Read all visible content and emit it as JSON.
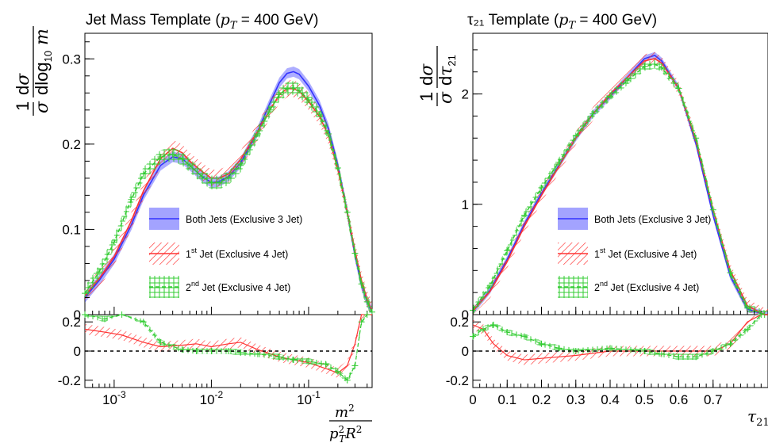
{
  "colors": {
    "both": "#3333ff",
    "first": "#ff3333",
    "second": "#33cc33"
  },
  "legend": {
    "both": "Both Jets (Exclusive 3 Jet)",
    "first_sup": "st",
    "first_rest": " Jet (Exclusive 4 Jet)",
    "second_sup": "nd",
    "second_rest": " Jet (Exclusive 4 Jet)",
    "num_first": "1",
    "num_second": "2"
  },
  "chart_data": [
    {
      "type": "line",
      "title": "Jet Mass Template (",
      "title_sym": "p",
      "title_sub": "T",
      "title_rest": " = 400 GeV)",
      "ylabel": "1/σ dσ/dlog10 m",
      "xlabel": "m²/(pT² R²)",
      "xscale": "log",
      "xlim": [
        0.0005,
        0.45
      ],
      "ylim": [
        0,
        0.33
      ],
      "ratio_ylim": [
        -0.25,
        0.25
      ],
      "xticks": [
        {
          "v": 0.001,
          "base": "10",
          "exp": "-3"
        },
        {
          "v": 0.01,
          "base": "10",
          "exp": "-2"
        },
        {
          "v": 0.1,
          "base": "10",
          "exp": "-1"
        }
      ],
      "yticks": [
        {
          "v": 0,
          "label": "0"
        },
        {
          "v": 0.1,
          "label": "0.1"
        },
        {
          "v": 0.2,
          "label": "0.2"
        },
        {
          "v": 0.3,
          "label": "0.3"
        }
      ],
      "ratio_yticks": [
        {
          "v": 0.2,
          "label": "0.2"
        },
        {
          "v": 0,
          "label": "0"
        },
        {
          "v": -0.2,
          "label": "-0.2"
        }
      ],
      "series": [
        {
          "key": "both",
          "band": 0.006,
          "x": [
            0.0005,
            0.0007,
            0.001,
            0.0015,
            0.002,
            0.003,
            0.004,
            0.005,
            0.006,
            0.008,
            0.01,
            0.012,
            0.015,
            0.02,
            0.03,
            0.04,
            0.05,
            0.06,
            0.07,
            0.08,
            0.1,
            0.13,
            0.16,
            0.2,
            0.25,
            0.3,
            0.35,
            0.4,
            0.45
          ],
          "y": [
            0.02,
            0.04,
            0.065,
            0.105,
            0.14,
            0.175,
            0.185,
            0.183,
            0.175,
            0.162,
            0.155,
            0.156,
            0.162,
            0.178,
            0.215,
            0.248,
            0.272,
            0.283,
            0.285,
            0.282,
            0.268,
            0.245,
            0.218,
            0.175,
            0.12,
            0.07,
            0.035,
            0.015,
            0.003
          ]
        },
        {
          "key": "first",
          "band": 0.01,
          "x": [
            0.0005,
            0.0007,
            0.001,
            0.0015,
            0.002,
            0.003,
            0.004,
            0.005,
            0.006,
            0.008,
            0.01,
            0.012,
            0.015,
            0.02,
            0.03,
            0.04,
            0.05,
            0.06,
            0.07,
            0.08,
            0.1,
            0.13,
            0.16,
            0.2,
            0.25,
            0.3,
            0.35,
            0.4,
            0.45
          ],
          "y": [
            0.022,
            0.042,
            0.068,
            0.11,
            0.145,
            0.183,
            0.195,
            0.19,
            0.18,
            0.168,
            0.16,
            0.16,
            0.165,
            0.182,
            0.215,
            0.24,
            0.258,
            0.265,
            0.265,
            0.262,
            0.25,
            0.232,
            0.21,
            0.17,
            0.12,
            0.075,
            0.04,
            0.018,
            0.004
          ]
        },
        {
          "key": "second",
          "band": 0.008,
          "x": [
            0.0005,
            0.0007,
            0.001,
            0.0015,
            0.002,
            0.003,
            0.004,
            0.005,
            0.006,
            0.008,
            0.01,
            0.012,
            0.015,
            0.02,
            0.03,
            0.04,
            0.05,
            0.06,
            0.07,
            0.08,
            0.1,
            0.13,
            0.16,
            0.2,
            0.25,
            0.3,
            0.35,
            0.4,
            0.45
          ],
          "y": [
            0.025,
            0.05,
            0.085,
            0.135,
            0.165,
            0.185,
            0.188,
            0.183,
            0.175,
            0.162,
            0.155,
            0.155,
            0.16,
            0.175,
            0.212,
            0.24,
            0.258,
            0.265,
            0.266,
            0.263,
            0.252,
            0.235,
            0.212,
            0.172,
            0.12,
            0.072,
            0.036,
            0.015,
            0.003
          ]
        }
      ],
      "ratio": [
        {
          "key": "first",
          "band": 0.035,
          "x": [
            0.0005,
            0.0008,
            0.0012,
            0.002,
            0.003,
            0.005,
            0.007,
            0.01,
            0.015,
            0.02,
            0.03,
            0.05,
            0.07,
            0.1,
            0.15,
            0.2,
            0.25,
            0.3,
            0.35,
            0.4,
            0.45
          ],
          "y": [
            0.15,
            0.13,
            0.11,
            0.06,
            0.03,
            0.04,
            0.05,
            0.03,
            0.05,
            0.06,
            0.01,
            -0.04,
            -0.06,
            -0.08,
            -0.12,
            -0.15,
            -0.1,
            0.05,
            0.25,
            0.28,
            0.28
          ]
        },
        {
          "key": "second",
          "band": 0.02,
          "x": [
            0.0005,
            0.0008,
            0.0012,
            0.002,
            0.003,
            0.005,
            0.007,
            0.01,
            0.015,
            0.02,
            0.03,
            0.05,
            0.07,
            0.1,
            0.15,
            0.2,
            0.25,
            0.3,
            0.35,
            0.4
          ],
          "y": [
            0.25,
            0.22,
            0.28,
            0.2,
            0.06,
            0.01,
            0.0,
            0.0,
            0.0,
            -0.01,
            -0.02,
            -0.04,
            -0.06,
            -0.07,
            -0.09,
            -0.14,
            -0.2,
            -0.1,
            0.2,
            0.28
          ]
        }
      ]
    },
    {
      "type": "line",
      "title": "τ₂₁ Template (",
      "title_sym": "p",
      "title_sub": "T",
      "title_rest": " = 400 GeV)",
      "ylabel": "1/σ dσ/dτ21",
      "xlabel": "τ21",
      "xscale": "linear",
      "xlim": [
        0,
        0.86
      ],
      "ylim": [
        0,
        2.55
      ],
      "ratio_ylim": [
        -0.25,
        0.25
      ],
      "xticks": [
        {
          "v": 0,
          "label": "0"
        },
        {
          "v": 0.1,
          "label": "0.1"
        },
        {
          "v": 0.2,
          "label": "0.2"
        },
        {
          "v": 0.3,
          "label": "0.3"
        },
        {
          "v": 0.4,
          "label": "0.4"
        },
        {
          "v": 0.5,
          "label": "0.5"
        },
        {
          "v": 0.6,
          "label": "0.6"
        },
        {
          "v": 0.7,
          "label": "0.7"
        }
      ],
      "yticks": [
        {
          "v": 0,
          "label": "0"
        },
        {
          "v": 1,
          "label": "1"
        },
        {
          "v": 2,
          "label": "2"
        }
      ],
      "ratio_yticks": [
        {
          "v": 0.2,
          "label": "0.2"
        },
        {
          "v": 0,
          "label": "0"
        },
        {
          "v": -0.2,
          "label": "-0.2"
        }
      ],
      "series": [
        {
          "key": "both",
          "band": 0.03,
          "x": [
            0,
            0.05,
            0.1,
            0.15,
            0.2,
            0.25,
            0.3,
            0.35,
            0.4,
            0.45,
            0.5,
            0.53,
            0.55,
            0.6,
            0.65,
            0.7,
            0.75,
            0.8,
            0.85,
            0.86
          ],
          "y": [
            0.03,
            0.22,
            0.5,
            0.82,
            1.1,
            1.35,
            1.6,
            1.82,
            1.98,
            2.15,
            2.32,
            2.35,
            2.3,
            2.05,
            1.55,
            0.9,
            0.35,
            0.05,
            0.0,
            0.0
          ]
        },
        {
          "key": "first",
          "band": 0.06,
          "x": [
            0,
            0.05,
            0.1,
            0.15,
            0.2,
            0.25,
            0.3,
            0.35,
            0.4,
            0.45,
            0.5,
            0.53,
            0.55,
            0.6,
            0.65,
            0.7,
            0.75,
            0.8,
            0.85,
            0.86
          ],
          "y": [
            0.03,
            0.21,
            0.48,
            0.8,
            1.08,
            1.34,
            1.6,
            1.82,
            2.0,
            2.15,
            2.3,
            2.32,
            2.28,
            2.05,
            1.58,
            0.95,
            0.4,
            0.08,
            0.0,
            0.0
          ]
        },
        {
          "key": "second",
          "band": 0.04,
          "x": [
            0,
            0.05,
            0.1,
            0.15,
            0.2,
            0.25,
            0.3,
            0.35,
            0.4,
            0.45,
            0.5,
            0.53,
            0.55,
            0.6,
            0.65,
            0.7,
            0.75,
            0.8,
            0.85,
            0.86
          ],
          "y": [
            0.04,
            0.26,
            0.58,
            0.9,
            1.15,
            1.38,
            1.62,
            1.82,
            1.98,
            2.12,
            2.25,
            2.27,
            2.24,
            2.05,
            1.6,
            0.95,
            0.38,
            0.06,
            0.0,
            0.0
          ]
        }
      ],
      "ratio": [
        {
          "key": "first",
          "band": 0.035,
          "x": [
            0,
            0.03,
            0.06,
            0.1,
            0.15,
            0.2,
            0.3,
            0.4,
            0.5,
            0.6,
            0.7,
            0.75,
            0.8,
            0.84,
            0.86
          ],
          "y": [
            0.18,
            0.15,
            0.05,
            -0.03,
            -0.06,
            -0.05,
            -0.03,
            0.0,
            0.0,
            0.0,
            0.0,
            0.05,
            0.2,
            0.3,
            0.3
          ]
        },
        {
          "key": "second",
          "band": 0.02,
          "x": [
            0,
            0.03,
            0.06,
            0.1,
            0.15,
            0.2,
            0.25,
            0.3,
            0.4,
            0.5,
            0.55,
            0.6,
            0.65,
            0.7,
            0.75,
            0.8,
            0.84
          ],
          "y": [
            0.1,
            0.15,
            0.18,
            0.13,
            0.1,
            0.05,
            0.02,
            0.0,
            0.02,
            0.0,
            -0.02,
            -0.04,
            -0.04,
            0.0,
            0.05,
            0.15,
            0.25
          ]
        }
      ]
    }
  ]
}
